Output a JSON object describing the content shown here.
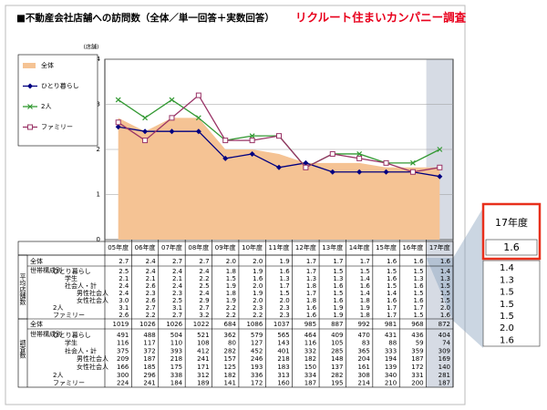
{
  "header": {
    "title": "■不動産会社店舗への訪問数（全体／単一回答＋実数回答）",
    "source": "リクルート住まいカンパニー調査"
  },
  "chart_data": {
    "type": "line",
    "y_unit": "(店舗)",
    "categories": [
      "05年度",
      "06年度",
      "07年度",
      "08年度",
      "09年度",
      "10年度",
      "11年度",
      "12年度",
      "13年度",
      "14年度",
      "15年度",
      "16年度",
      "17年度"
    ],
    "ylim": [
      0,
      4
    ],
    "yticks": [
      0,
      1,
      2,
      3,
      4
    ],
    "grid": true,
    "series": [
      {
        "name": "全体",
        "type": "area",
        "color": "#f5c394",
        "values": [
          2.7,
          2.4,
          2.7,
          2.7,
          2.0,
          2.0,
          1.9,
          1.7,
          1.7,
          1.7,
          1.6,
          1.6,
          1.6
        ]
      },
      {
        "name": "ひとり暮らし",
        "marker": "diamond",
        "color": "#000080",
        "values": [
          2.5,
          2.4,
          2.4,
          2.4,
          1.8,
          1.9,
          1.6,
          1.7,
          1.5,
          1.5,
          1.5,
          1.5,
          1.4
        ]
      },
      {
        "name": "2人",
        "marker": "x",
        "color": "#339933",
        "values": [
          3.1,
          2.7,
          3.1,
          2.7,
          2.2,
          2.3,
          2.3,
          1.6,
          1.9,
          1.9,
          1.7,
          1.7,
          2.0
        ]
      },
      {
        "name": "ファミリー",
        "marker": "square",
        "color": "#993366",
        "values": [
          2.6,
          2.2,
          2.7,
          3.2,
          2.2,
          2.2,
          2.3,
          1.6,
          1.9,
          1.8,
          1.7,
          1.5,
          1.6
        ]
      }
    ]
  },
  "table": {
    "sections": [
      {
        "label": "平均店舗数",
        "group_label": "世帯構成別",
        "rows": [
          {
            "label": "全体",
            "values": [
              "2.7",
              "2.4",
              "2.7",
              "2.7",
              "2.0",
              "2.0",
              "1.9",
              "1.7",
              "1.7",
              "1.7",
              "1.6",
              "1.6",
              "1.6"
            ]
          },
          {
            "label": "ひとり暮らし",
            "values": [
              "2.5",
              "2.4",
              "2.4",
              "2.4",
              "1.8",
              "1.9",
              "1.6",
              "1.7",
              "1.5",
              "1.5",
              "1.5",
              "1.5",
              "1.4"
            ]
          },
          {
            "label": "学生",
            "values": [
              "2.1",
              "2.1",
              "2.1",
              "2.2",
              "1.5",
              "1.6",
              "1.3",
              "1.3",
              "1.3",
              "1.4",
              "1.6",
              "1.3",
              "1.3"
            ]
          },
          {
            "label": "社会人・計",
            "values": [
              "2.4",
              "2.6",
              "2.4",
              "2.5",
              "1.9",
              "2.0",
              "1.7",
              "1.8",
              "1.6",
              "1.6",
              "1.5",
              "1.6",
              "1.5"
            ]
          },
          {
            "label": "男性社会人",
            "values": [
              "2.4",
              "2.3",
              "2.3",
              "2.4",
              "1.8",
              "1.9",
              "1.5",
              "1.7",
              "1.5",
              "1.4",
              "1.4",
              "1.5",
              "1.5"
            ]
          },
          {
            "label": "女性社会人",
            "values": [
              "3.0",
              "2.6",
              "2.5",
              "2.9",
              "1.9",
              "2.0",
              "2.0",
              "1.8",
              "1.6",
              "1.8",
              "1.6",
              "1.6",
              "1.5"
            ]
          },
          {
            "label": "2人",
            "values": [
              "3.1",
              "2.7",
              "3.1",
              "2.7",
              "2.2",
              "2.3",
              "2.3",
              "1.6",
              "1.9",
              "1.9",
              "1.7",
              "1.7",
              "2.0"
            ]
          },
          {
            "label": "ファミリー",
            "values": [
              "2.6",
              "2.2",
              "2.7",
              "3.2",
              "2.2",
              "2.2",
              "2.3",
              "1.6",
              "1.9",
              "1.8",
              "1.7",
              "1.5",
              "1.6"
            ]
          }
        ]
      },
      {
        "label": "調査数",
        "group_label": "世帯構成別",
        "rows": [
          {
            "label": "全体",
            "values": [
              1019,
              1026,
              1026,
              1022,
              684,
              1086,
              1037,
              985,
              887,
              992,
              981,
              968,
              872
            ]
          },
          {
            "label": "ひとり暮らし",
            "values": [
              491,
              488,
              504,
              521,
              362,
              579,
              565,
              464,
              409,
              470,
              431,
              436,
              404
            ]
          },
          {
            "label": "学生",
            "values": [
              116,
              117,
              110,
              108,
              80,
              127,
              143,
              116,
              105,
              83,
              88,
              59,
              74
            ]
          },
          {
            "label": "社会人・計",
            "values": [
              375,
              372,
              393,
              412,
              282,
              452,
              401,
              332,
              285,
              365,
              333,
              359,
              309
            ]
          },
          {
            "label": "男性社会人",
            "values": [
              209,
              187,
              218,
              241,
              157,
              246,
              218,
              182,
              148,
              204,
              194,
              187,
              169
            ]
          },
          {
            "label": "女性社会人",
            "values": [
              166,
              185,
              175,
              171,
              125,
              193,
              183,
              150,
              137,
              161,
              139,
              172,
              140
            ]
          },
          {
            "label": "2人",
            "values": [
              300,
              296,
              338,
              312,
              182,
              336,
              313,
              334,
              282,
              308,
              340,
              331,
              281
            ]
          },
          {
            "label": "ファミリー",
            "values": [
              224,
              241,
              184,
              189,
              141,
              172,
              160,
              187,
              195,
              214,
              210,
              200,
              187
            ]
          }
        ]
      }
    ]
  }
}
